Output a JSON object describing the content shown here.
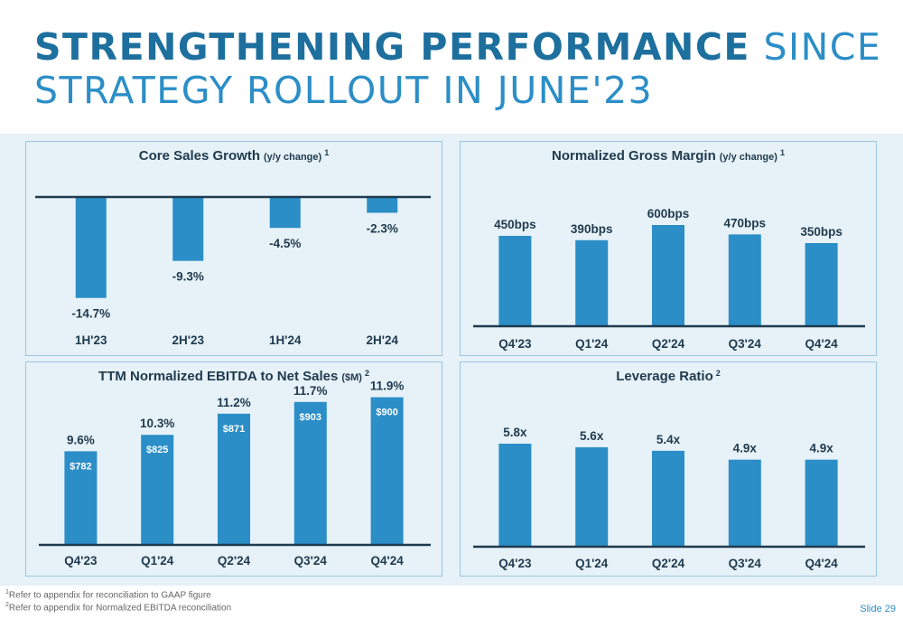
{
  "header": {
    "title_bold": "STRENGTHENING PERFORMANCE",
    "title_rest_line1": "SINCE",
    "title_line2": "STRATEGY ROLLOUT IN JUNE'23"
  },
  "colors": {
    "bar": "#2b8ec7",
    "axis": "#1f3a4d",
    "text": "#1f3a4d"
  },
  "chart_data": [
    {
      "id": "core",
      "type": "bar",
      "title": "Core Sales Growth",
      "subtitle": "(y/y change)",
      "footnote_ref": "1",
      "categories": [
        "1H'23",
        "2H'23",
        "1H'24",
        "2H'24"
      ],
      "values": [
        -14.7,
        -9.3,
        -4.5,
        -2.3
      ],
      "labels": [
        "-14.7%",
        "-9.3%",
        "-4.5%",
        "-2.3%"
      ],
      "ylim": [
        -15,
        0
      ]
    },
    {
      "id": "margin",
      "type": "bar",
      "title": "Normalized Gross Margin",
      "subtitle": "(y/y change)",
      "footnote_ref": "1",
      "categories": [
        "Q4'23",
        "Q1'24",
        "Q2'24",
        "Q3'24",
        "Q4'24"
      ],
      "values": [
        450,
        390,
        600,
        470,
        350
      ],
      "labels": [
        "450bps",
        "390bps",
        "600bps",
        "470bps",
        "350bps"
      ],
      "ylim": [
        0,
        600
      ]
    },
    {
      "id": "ebitda",
      "type": "bar",
      "title": "TTM Normalized EBITDA to Net Sales",
      "subtitle": "($M)",
      "footnote_ref": "2",
      "categories": [
        "Q4'23",
        "Q1'24",
        "Q2'24",
        "Q3'24",
        "Q4'24"
      ],
      "values": [
        9.6,
        10.3,
        11.2,
        11.7,
        11.9
      ],
      "labels": [
        "9.6%",
        "10.3%",
        "11.2%",
        "11.7%",
        "11.9%"
      ],
      "bar_values": [
        782,
        825,
        871,
        903,
        900
      ],
      "bar_labels": [
        "$782",
        "$825",
        "$871",
        "$903",
        "$900"
      ],
      "ylim": [
        8,
        12
      ]
    },
    {
      "id": "leverage",
      "type": "bar",
      "title": "Leverage Ratio",
      "subtitle": "",
      "footnote_ref": "2",
      "categories": [
        "Q4'23",
        "Q1'24",
        "Q2'24",
        "Q3'24",
        "Q4'24"
      ],
      "values": [
        5.8,
        5.6,
        5.4,
        4.9,
        4.9
      ],
      "labels": [
        "5.8x",
        "5.6x",
        "5.4x",
        "4.9x",
        "4.9x"
      ],
      "ylim": [
        0,
        5.8
      ]
    }
  ],
  "footnotes": [
    {
      "marker": "1",
      "text": "Refer to appendix for reconciliation to GAAP figure"
    },
    {
      "marker": "2",
      "text": "Refer to appendix for Normalized EBITDA reconciliation"
    }
  ],
  "slide_label": "Slide 29"
}
